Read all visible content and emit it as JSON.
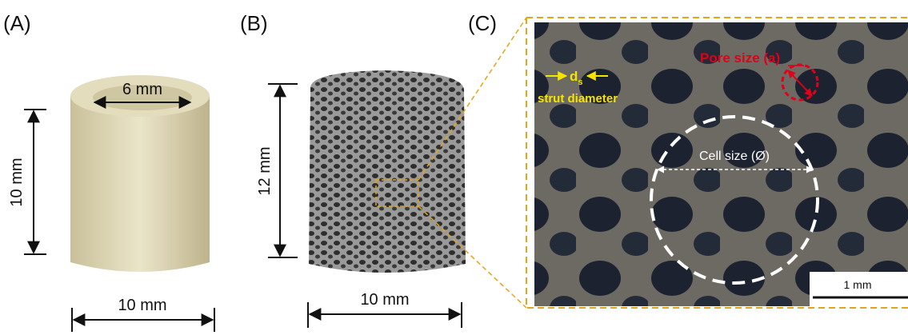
{
  "panels": [
    {
      "label": "(A)",
      "dimensions": {
        "inner": "6 mm",
        "height": "10 mm",
        "width": "10 mm"
      }
    },
    {
      "label": "(B)",
      "dimensions": {
        "height": "12 mm",
        "width": "10 mm"
      }
    },
    {
      "label": "(C)",
      "annotations": {
        "strut_symbol": "d",
        "strut_subscript": "s",
        "strut_label": "strut diameter",
        "pore": "Pore size (a)",
        "cell": "Cell size (Ø)",
        "scale": "1 mm"
      }
    }
  ]
}
